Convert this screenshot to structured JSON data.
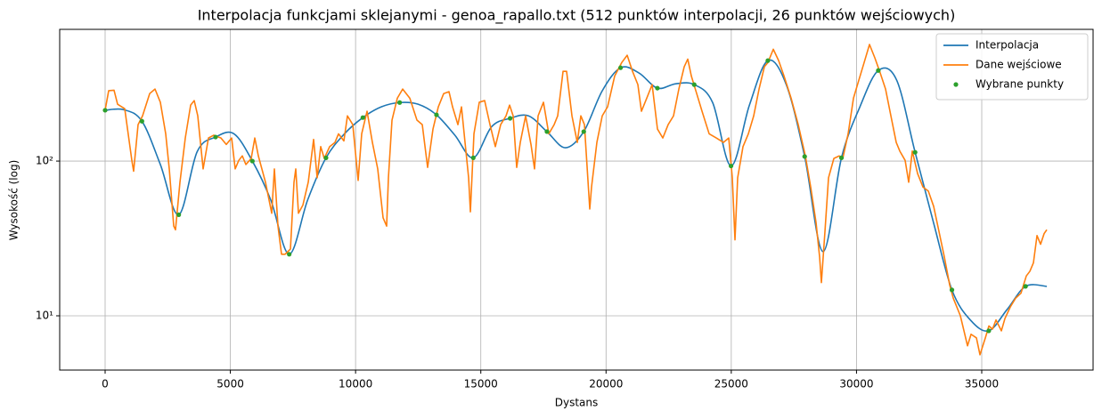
{
  "chart_data": {
    "type": "line",
    "title": "Interpolacja funkcjami sklejanymi - genoa_rapallo.txt (512 punktów interpolacji, 26 punktów wejściowych)",
    "x_label": "Dystans",
    "y_label": "Wysokość (log)",
    "xlim": [
      -1814,
      39446
    ],
    "xticks": [
      0,
      5000,
      10000,
      15000,
      20000,
      25000,
      30000,
      35000
    ],
    "ylim": [
      4.46,
      710
    ],
    "yticks": [
      {
        "value": 10,
        "label": "10¹"
      },
      {
        "value": 100,
        "label": "10²"
      }
    ],
    "y_scale": "log",
    "grid": true,
    "legend": "upper right",
    "series": [
      {
        "name": "Interpolacja",
        "color": "#1f77b4",
        "mode": "line",
        "x": [
          0,
          735,
          1470,
          2205,
          2940,
          3675,
          4410,
          5145,
          5880,
          6615,
          7350,
          8085,
          8820,
          9555,
          10290,
          11025,
          11760,
          12495,
          13230,
          13965,
          14700,
          15435,
          16170,
          16905,
          17640,
          18375,
          19110,
          19845,
          20580,
          21315,
          22050,
          22785,
          23520,
          24255,
          24990,
          25725,
          26460,
          27195,
          27930,
          28665,
          29400,
          30135,
          30870,
          31605,
          32340,
          33075,
          33810,
          34545,
          35280,
          36015,
          36750,
          37600
        ],
        "values": [
          213,
          215,
          181,
          95,
          45,
          115,
          143,
          150,
          100,
          56,
          25,
          56,
          105,
          150,
          191,
          224,
          239,
          233,
          199,
          147,
          105,
          167,
          189,
          196,
          155,
          122,
          155,
          284,
          401,
          371,
          296,
          316,
          312,
          239,
          93,
          230,
          446,
          312,
          107,
          26,
          105,
          224,
          385,
          333,
          114,
          40,
          14.7,
          9.4,
          8.0,
          11,
          15.5,
          15.5
        ]
      },
      {
        "name": "Dane wejściowe",
        "color": "#ff7f0e",
        "mode": "line",
        "x": [
          0,
          142,
          356,
          498,
          783,
          1067,
          1138,
          1316,
          1494,
          1779,
          1992,
          2205,
          2419,
          2561,
          2739,
          2810,
          2988,
          3201,
          3415,
          3557,
          3699,
          3913,
          4126,
          4340,
          4624,
          4838,
          5051,
          5193,
          5336,
          5478,
          5620,
          5833,
          5976,
          6118,
          6402,
          6652,
          6758,
          6901,
          7043,
          7185,
          7399,
          7541,
          7612,
          7719,
          7897,
          8110,
          8324,
          8466,
          8608,
          8750,
          8964,
          9177,
          9319,
          9533,
          9675,
          9888,
          10102,
          10244,
          10458,
          10671,
          10884,
          11098,
          11240,
          11311,
          11454,
          11667,
          11880,
          12165,
          12450,
          12663,
          12876,
          13090,
          13303,
          13517,
          13730,
          13872,
          14086,
          14228,
          14370,
          14513,
          14584,
          14726,
          14939,
          15153,
          15366,
          15580,
          15793,
          16007,
          16149,
          16291,
          16433,
          16576,
          16789,
          17003,
          17145,
          17287,
          17501,
          17714,
          17928,
          18070,
          18283,
          18425,
          18639,
          18852,
          18994,
          19137,
          19350,
          19421,
          19634,
          19848,
          20061,
          20346,
          20630,
          20844,
          21057,
          21271,
          21413,
          21626,
          21840,
          22053,
          22267,
          22480,
          22694,
          22907,
          23121,
          23263,
          23405,
          23619,
          23832,
          24117,
          24401,
          24686,
          24899,
          25041,
          25148,
          25255,
          25468,
          25682,
          25895,
          26109,
          26322,
          26464,
          26678,
          26891,
          27105,
          27389,
          27673,
          27958,
          28171,
          28385,
          28527,
          28598,
          28740,
          28883,
          29096,
          29310,
          29452,
          29665,
          29879,
          30092,
          30306,
          30519,
          30733,
          30946,
          31160,
          31373,
          31586,
          31729,
          31942,
          32084,
          32227,
          32440,
          32653,
          32867,
          33080,
          33294,
          33507,
          33721,
          33863,
          34005,
          34147,
          34290,
          34432,
          34574,
          34788,
          34930,
          35144,
          35286,
          35428,
          35570,
          35784,
          35926,
          36139,
          36353,
          36566,
          36780,
          36922,
          37064,
          37207,
          37349,
          37491,
          37598
        ],
        "values": [
          213,
          285,
          287,
          233,
          218,
          101,
          86,
          172,
          196,
          273,
          292,
          240,
          150,
          89,
          38,
          36,
          73,
          141,
          230,
          246,
          196,
          89,
          141,
          147,
          141,
          128,
          141,
          89,
          101,
          108,
          95,
          104,
          141,
          108,
          73,
          46,
          89,
          38,
          25,
          25,
          27,
          73,
          89,
          46,
          52,
          73,
          138,
          78,
          124,
          104,
          124,
          132,
          150,
          135,
          196,
          172,
          75,
          150,
          210,
          132,
          89,
          43,
          38,
          78,
          184,
          255,
          292,
          255,
          184,
          172,
          91,
          161,
          224,
          273,
          281,
          224,
          172,
          224,
          132,
          78,
          47,
          150,
          240,
          246,
          172,
          124,
          172,
          196,
          230,
          196,
          91,
          132,
          196,
          128,
          89,
          196,
          240,
          150,
          172,
          196,
          380,
          380,
          196,
          132,
          196,
          172,
          49,
          68,
          132,
          196,
          224,
          355,
          434,
          483,
          380,
          312,
          210,
          255,
          312,
          161,
          141,
          172,
          196,
          292,
          407,
          456,
          355,
          273,
          210,
          150,
          141,
          132,
          141,
          78,
          31,
          78,
          124,
          150,
          196,
          292,
          407,
          434,
          528,
          446,
          355,
          255,
          172,
          108,
          68,
          40,
          24,
          16.4,
          35,
          78,
          104,
          108,
          104,
          150,
          255,
          333,
          434,
          567,
          464,
          371,
          292,
          196,
          132,
          116,
          101,
          73,
          116,
          83,
          68,
          64,
          51,
          35,
          24,
          15.8,
          13,
          11.4,
          10,
          8,
          6.4,
          7.6,
          7.2,
          5.6,
          7.2,
          8.6,
          8.2,
          9.4,
          8,
          9.6,
          11.4,
          13,
          14,
          18.1,
          19.4,
          22,
          33,
          29,
          34,
          36
        ]
      },
      {
        "name": "Wybrane punkty",
        "color": "#2ca02c",
        "mode": "markers",
        "x": [
          0,
          1470,
          2940,
          4410,
          5880,
          7350,
          8820,
          10290,
          11760,
          13230,
          14700,
          16170,
          17640,
          19110,
          20580,
          22050,
          23520,
          24990,
          26460,
          27930,
          29400,
          30870,
          32340,
          33810,
          35280,
          36750
        ],
        "values": [
          213,
          181,
          45,
          143,
          100,
          25,
          105,
          191,
          239,
          199,
          105,
          189,
          155,
          155,
          401,
          296,
          312,
          93,
          446,
          107,
          105,
          385,
          114,
          14.7,
          8.0,
          15.5
        ]
      }
    ]
  }
}
